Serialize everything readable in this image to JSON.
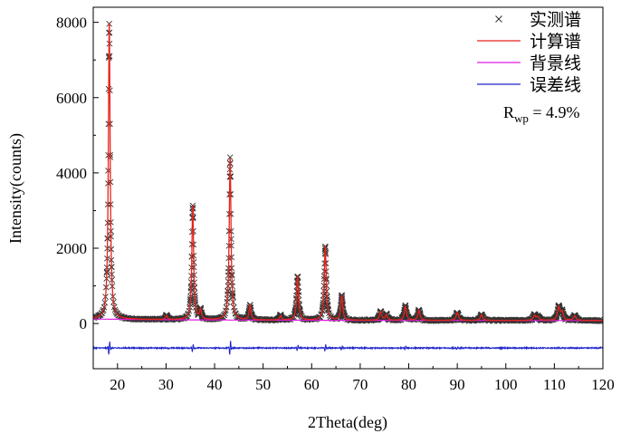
{
  "chart_data": {
    "type": "line",
    "xlabel": "2Theta(deg)",
    "ylabel": "Intensity(counts)",
    "xlim": [
      15,
      120
    ],
    "ylim": [
      -1200,
      8400
    ],
    "x_ticks": [
      20,
      30,
      40,
      50,
      60,
      70,
      80,
      90,
      100,
      110,
      120
    ],
    "y_ticks": [
      0,
      2000,
      4000,
      6000,
      8000
    ],
    "grid": false,
    "legend": {
      "placement": "top-right",
      "entries": [
        {
          "name": "实测谱",
          "color": "#333333",
          "style": "marker-x"
        },
        {
          "name": "计算谱",
          "color": "#e8231c",
          "style": "line"
        },
        {
          "name": "背景线",
          "color": "#e01ee0",
          "style": "line"
        },
        {
          "name": "误差线",
          "color": "#1f26c9",
          "style": "line"
        }
      ]
    },
    "annotation": {
      "main": "R",
      "subscript": "wp",
      "rest": " = 4.9%"
    },
    "background_level": 80,
    "difference_offset": -650,
    "peaks": [
      {
        "x": 18.3,
        "y": 7950,
        "w": 0.22
      },
      {
        "x": 30.1,
        "y": 190,
        "w": 0.2
      },
      {
        "x": 35.5,
        "y": 3120,
        "w": 0.22
      },
      {
        "x": 37.1,
        "y": 330,
        "w": 0.2
      },
      {
        "x": 43.2,
        "y": 4380,
        "w": 0.22
      },
      {
        "x": 47.3,
        "y": 470,
        "w": 0.22
      },
      {
        "x": 53.6,
        "y": 200,
        "w": 0.2
      },
      {
        "x": 57.1,
        "y": 1240,
        "w": 0.24
      },
      {
        "x": 62.8,
        "y": 2050,
        "w": 0.24
      },
      {
        "x": 66.2,
        "y": 720,
        "w": 0.24
      },
      {
        "x": 74.2,
        "y": 320,
        "w": 0.25
      },
      {
        "x": 75.4,
        "y": 230,
        "w": 0.25
      },
      {
        "x": 79.3,
        "y": 450,
        "w": 0.26
      },
      {
        "x": 82.1,
        "y": 350,
        "w": 0.26
      },
      {
        "x": 90.0,
        "y": 290,
        "w": 0.28
      },
      {
        "x": 95.0,
        "y": 230,
        "w": 0.28
      },
      {
        "x": 105.9,
        "y": 210,
        "w": 0.3
      },
      {
        "x": 106.6,
        "y": 170,
        "w": 0.3
      },
      {
        "x": 110.9,
        "y": 430,
        "w": 0.3
      },
      {
        "x": 111.6,
        "y": 290,
        "w": 0.3
      },
      {
        "x": 114.2,
        "y": 200,
        "w": 0.3
      }
    ],
    "difference_spikes": [
      {
        "x": 18.3,
        "amp": 220
      },
      {
        "x": 35.5,
        "amp": 130
      },
      {
        "x": 43.2,
        "amp": 230
      },
      {
        "x": 57.1,
        "amp": 90
      },
      {
        "x": 62.8,
        "amp": 110
      },
      {
        "x": 66.2,
        "amp": 60
      },
      {
        "x": 79.3,
        "amp": 50
      },
      {
        "x": 90.0,
        "amp": 40
      }
    ]
  }
}
